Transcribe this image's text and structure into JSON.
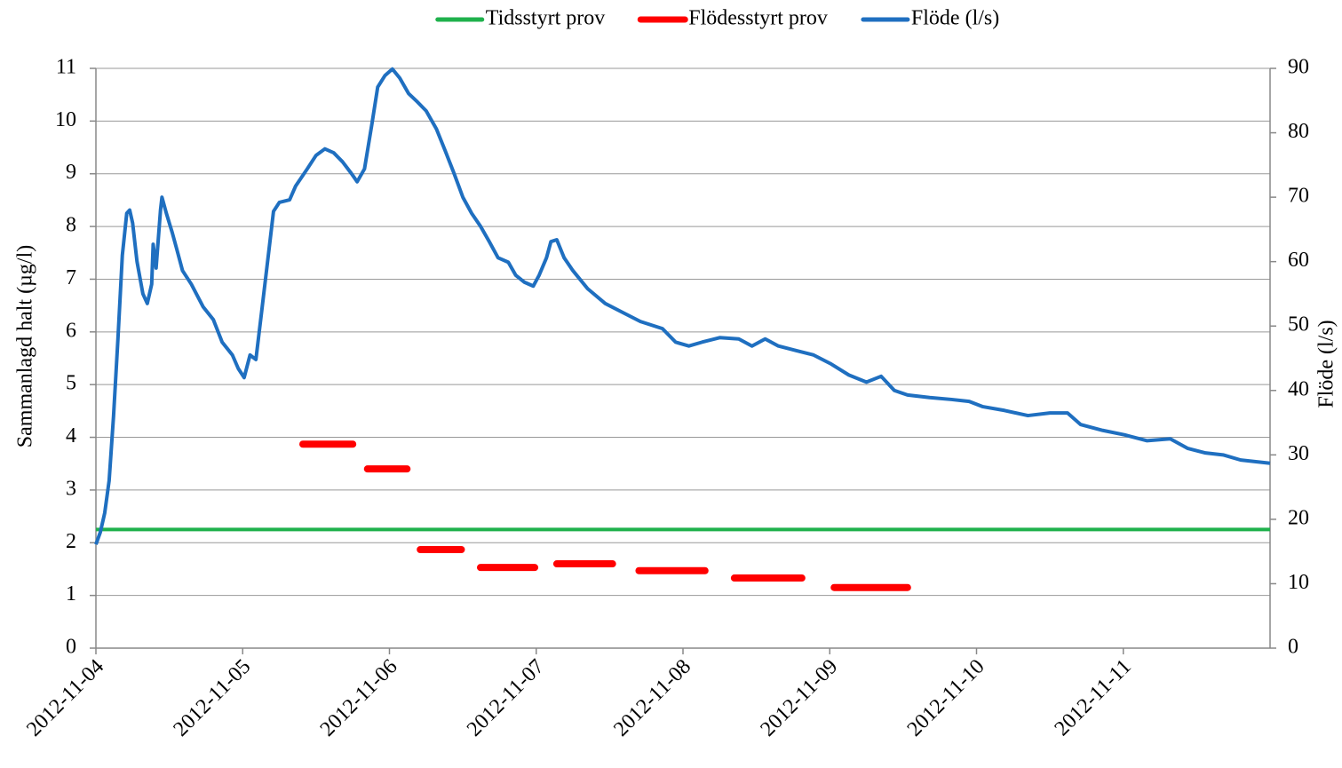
{
  "chart_data": {
    "type": "line",
    "ylabel": "Sammanlagd halt (µg/l)",
    "y2label": "Flöde (l/s)",
    "xlim": [
      0,
      8
    ],
    "xticks": [
      {
        "value": 0,
        "label": "2012-11-04"
      },
      {
        "value": 1,
        "label": "2012-11-05"
      },
      {
        "value": 2,
        "label": "2012-11-06"
      },
      {
        "value": 3,
        "label": "2012-11-07"
      },
      {
        "value": 4,
        "label": "2012-11-08"
      },
      {
        "value": 5,
        "label": "2012-11-09"
      },
      {
        "value": 6,
        "label": "2012-11-10"
      },
      {
        "value": 7,
        "label": "2012-11-11"
      }
    ],
    "ylim": [
      0,
      11
    ],
    "yticks": [
      0,
      1,
      2,
      3,
      4,
      5,
      6,
      7,
      8,
      9,
      10,
      11
    ],
    "y2lim": [
      0,
      90
    ],
    "y2ticks": [
      0,
      10,
      20,
      30,
      40,
      50,
      60,
      70,
      80,
      90
    ],
    "grid": true,
    "legend": "top",
    "series": [
      {
        "name": "Tidsstyrt prov",
        "color": "#1fb14c",
        "width": 4,
        "x": [
          0,
          8
        ],
        "values": [
          2.25,
          2.25
        ]
      },
      {
        "name": "Flödesstyrt prov",
        "color": "#ff0000",
        "width": 8,
        "x": [
          1.41,
          1.75,
          null,
          1.85,
          2.12,
          null,
          2.21,
          2.49,
          null,
          2.62,
          2.99,
          null,
          3.14,
          3.52,
          null,
          3.7,
          4.15,
          null,
          4.35,
          4.81,
          null,
          5.03,
          5.53
        ],
        "values": [
          3.87,
          3.87,
          null,
          3.4,
          3.4,
          null,
          1.87,
          1.87,
          null,
          1.53,
          1.53,
          null,
          1.6,
          1.6,
          null,
          1.47,
          1.47,
          null,
          1.33,
          1.33,
          null,
          1.15,
          1.15
        ]
      },
      {
        "name": "Flöde (l/s)",
        "color": "#1f6fc0",
        "width": 4,
        "axis": "y2",
        "x": [
          0,
          0.03,
          0.06,
          0.09,
          0.12,
          0.15,
          0.18,
          0.21,
          0.23,
          0.25,
          0.28,
          0.32,
          0.35,
          0.38,
          0.39,
          0.41,
          0.44,
          0.45,
          0.48,
          0.52,
          0.55,
          0.59,
          0.65,
          0.73,
          0.8,
          0.86,
          0.93,
          0.97,
          1.01,
          1.05,
          1.09,
          1.13,
          1.18,
          1.21,
          1.25,
          1.32,
          1.36,
          1.44,
          1.5,
          1.56,
          1.62,
          1.68,
          1.74,
          1.78,
          1.83,
          1.88,
          1.92,
          1.97,
          2.02,
          2.07,
          2.13,
          2.19,
          2.25,
          2.32,
          2.38,
          2.44,
          2.5,
          2.56,
          2.62,
          2.68,
          2.74,
          2.81,
          2.86,
          2.92,
          2.98,
          3.02,
          3.07,
          3.1,
          3.14,
          3.19,
          3.25,
          3.35,
          3.47,
          3.59,
          3.71,
          3.86,
          3.95,
          4.04,
          4.13,
          4.25,
          4.38,
          4.47,
          4.56,
          4.65,
          4.77,
          4.89,
          5.01,
          5.13,
          5.25,
          5.35,
          5.44,
          5.53,
          5.68,
          5.83,
          5.95,
          6.04,
          6.19,
          6.35,
          6.5,
          6.62,
          6.71,
          6.86,
          7.01,
          7.16,
          7.32,
          7.44,
          7.56,
          7.68,
          7.8,
          8.0
        ],
        "values": [
          16.1,
          18,
          21,
          26,
          36,
          48,
          61,
          67.5,
          68,
          66,
          60,
          55,
          53.5,
          56.5,
          62.7,
          59,
          68,
          70,
          67.5,
          64.5,
          62,
          58.6,
          56.5,
          53,
          51,
          47.5,
          45.5,
          43.4,
          42,
          45.5,
          44.8,
          52.4,
          62,
          67.8,
          69.2,
          69.6,
          71.7,
          74.4,
          76.5,
          77.5,
          76.9,
          75.5,
          73.7,
          72.4,
          74.4,
          81.3,
          87.1,
          88.9,
          89.9,
          88.5,
          86.1,
          84.8,
          83.4,
          80.6,
          77.2,
          73.7,
          70,
          67.5,
          65.5,
          63.1,
          60.6,
          59.9,
          57.9,
          56.8,
          56.2,
          57.9,
          60.6,
          63.1,
          63.4,
          60.6,
          58.6,
          55.8,
          53.5,
          52.1,
          50.7,
          49.6,
          47.5,
          46.9,
          47.5,
          48.2,
          48.0,
          46.9,
          48.0,
          46.9,
          46.2,
          45.5,
          44.1,
          42.4,
          41.3,
          42.2,
          40.0,
          39.3,
          38.9,
          38.6,
          38.3,
          37.5,
          36.9,
          36.1,
          36.5,
          36.5,
          34.7,
          33.8,
          33.1,
          32.2,
          32.5,
          31.0,
          30.3,
          30.0,
          29.2,
          28.7
        ]
      }
    ]
  }
}
